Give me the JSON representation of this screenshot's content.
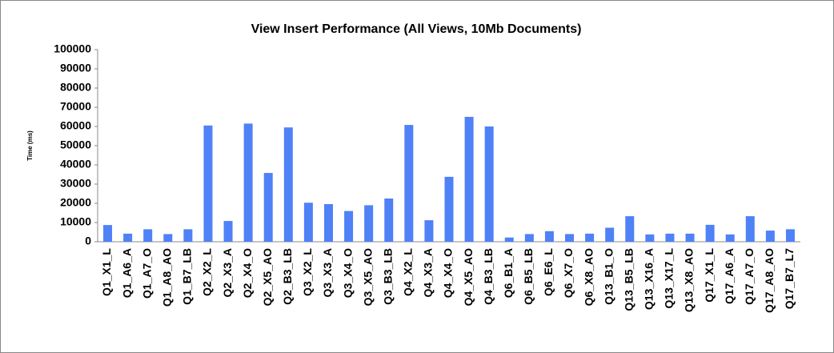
{
  "chart_data": {
    "type": "bar",
    "title": "View Insert Performance (All Views, 10Mb Documents)",
    "y_label": "Time (ms)",
    "categories": [
      "Q1_X1_L",
      "Q1_A6_A",
      "Q1_A7_O",
      "Q1_A8_AO",
      "Q1_B7_LB",
      "Q2_X2_L",
      "Q2_X3_A",
      "Q2_X4_O",
      "Q2_X5_AO",
      "Q2_B3_LB",
      "Q3_X2_L",
      "Q3_X3_A",
      "Q3_X4_O",
      "Q3_X5_AO",
      "Q3_B3_LB",
      "Q4_X2_L",
      "Q4_X3_A",
      "Q4_X4_O",
      "Q4_X5_AO",
      "Q4_B3_LB",
      "Q6_B1_A",
      "Q6_B5_LB",
      "Q6_E6_L",
      "Q6_X7_O",
      "Q6_X8_AO",
      "Q13_B1_O",
      "Q13_B5_LB",
      "Q13_X16_A",
      "Q13_X17_L",
      "Q13_X8_AO",
      "Q17_X1_L",
      "Q17_A6_A",
      "Q17_A7_O",
      "Q17_A8_AO",
      "Q17_B7_L7"
    ],
    "values": [
      8700,
      4200,
      6500,
      4000,
      6500,
      60500,
      10800,
      61500,
      35800,
      59500,
      20300,
      19600,
      16000,
      19000,
      22500,
      60800,
      11200,
      33800,
      65000,
      60000,
      2200,
      4000,
      5500,
      4000,
      4200,
      7300,
      13300,
      3800,
      4200,
      4200,
      8800,
      3800,
      13300,
      5800,
      6500
    ],
    "color": "#4f81f7",
    "ylim": [
      0,
      100000
    ],
    "yticks": [
      0,
      10000,
      20000,
      30000,
      40000,
      50000,
      60000,
      70000,
      80000,
      90000,
      100000
    ],
    "grid": false
  }
}
